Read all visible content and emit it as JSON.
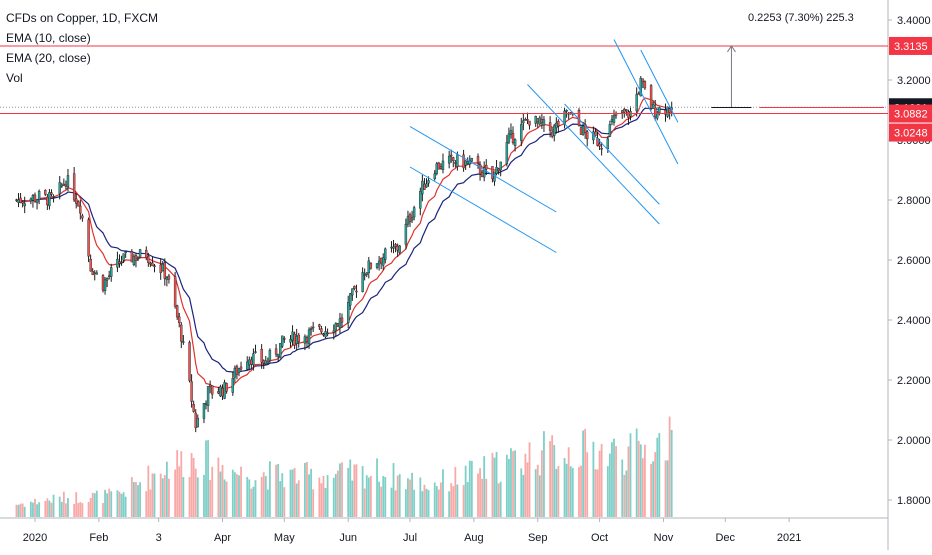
{
  "legend": {
    "title": "CFDs on Copper, 1D, FXCM",
    "ema10": "EMA (10, close)",
    "ema20": "EMA (20, close)",
    "vol": "Vol"
  },
  "measure_label": "0.2253  (7.30%)  225.3",
  "colors": {
    "up": "#26a69a",
    "down": "#ef5350",
    "up_vol": "#7ecfc7",
    "down_vol": "#f7a9a7",
    "ema10": "#e0322f",
    "ema20": "#1a237e",
    "channel": "#2196f3",
    "level": "#f23645",
    "axis_text": "#131722"
  },
  "chart_data": {
    "type": "candlestick",
    "title": "CFDs on Copper, 1D, FXCM",
    "ylim": [
      1.75,
      3.45
    ],
    "y_ticks": [
      "3.4000",
      "3.2000",
      "3.0000",
      "2.8000",
      "2.6000",
      "2.4000",
      "2.2000",
      "2.0000",
      "1.8000"
    ],
    "x_ticks": [
      "2020",
      "Feb",
      "3",
      "Apr",
      "May",
      "Jun",
      "Jul",
      "Aug",
      "Sep",
      "Oct",
      "Nov",
      "Dec",
      "2021"
    ],
    "price_labels": [
      {
        "label": "3.3135",
        "value": 3.3135,
        "style": "level"
      },
      {
        "label": "3.1091",
        "value": 3.1091,
        "style": "last"
      },
      {
        "label": "3.0882",
        "value": 3.0882,
        "style": "level"
      },
      {
        "label": "3.0248",
        "value": 3.0248,
        "style": "level"
      }
    ],
    "horizontal_levels": [
      3.3135,
      3.0882
    ],
    "last_price": 3.1091,
    "measure": {
      "from": 3.0882,
      "to": 3.3135,
      "change": 0.2253,
      "percent": "7.30%",
      "ticks": 225.3
    },
    "ohlc_anchors": [
      {
        "date": "2019-12-23",
        "close": 2.8
      },
      {
        "date": "2020-01-03",
        "close": 2.81
      },
      {
        "date": "2020-01-10",
        "close": 2.8
      },
      {
        "date": "2020-01-16",
        "close": 2.87
      },
      {
        "date": "2020-01-23",
        "close": 2.78
      },
      {
        "date": "2020-01-28",
        "close": 2.58
      },
      {
        "date": "2020-02-03",
        "close": 2.52
      },
      {
        "date": "2020-02-12",
        "close": 2.6
      },
      {
        "date": "2020-02-24",
        "close": 2.62
      },
      {
        "date": "2020-03-05",
        "close": 2.55
      },
      {
        "date": "2020-03-12",
        "close": 2.35
      },
      {
        "date": "2020-03-19",
        "close": 2.05
      },
      {
        "date": "2020-03-25",
        "close": 2.16
      },
      {
        "date": "2020-04-02",
        "close": 2.17
      },
      {
        "date": "2020-04-13",
        "close": 2.28
      },
      {
        "date": "2020-04-22",
        "close": 2.26
      },
      {
        "date": "2020-05-01",
        "close": 2.33
      },
      {
        "date": "2020-05-11",
        "close": 2.35
      },
      {
        "date": "2020-05-21",
        "close": 2.37
      },
      {
        "date": "2020-05-29",
        "close": 2.4
      },
      {
        "date": "2020-06-08",
        "close": 2.56
      },
      {
        "date": "2020-06-15",
        "close": 2.6
      },
      {
        "date": "2020-06-25",
        "close": 2.64
      },
      {
        "date": "2020-07-06",
        "close": 2.83
      },
      {
        "date": "2020-07-13",
        "close": 2.91
      },
      {
        "date": "2020-07-22",
        "close": 2.93
      },
      {
        "date": "2020-07-31",
        "close": 2.92
      },
      {
        "date": "2020-08-10",
        "close": 2.87
      },
      {
        "date": "2020-08-18",
        "close": 3.0
      },
      {
        "date": "2020-08-28",
        "close": 3.07
      },
      {
        "date": "2020-09-08",
        "close": 3.03
      },
      {
        "date": "2020-09-16",
        "close": 3.09
      },
      {
        "date": "2020-09-24",
        "close": 3.02
      },
      {
        "date": "2020-10-02",
        "close": 2.99
      },
      {
        "date": "2020-10-09",
        "close": 3.08
      },
      {
        "date": "2020-10-16",
        "close": 3.09
      },
      {
        "date": "2020-10-21",
        "close": 3.19
      },
      {
        "date": "2020-10-27",
        "close": 3.1
      },
      {
        "date": "2020-11-05",
        "close": 3.109
      }
    ],
    "volume_profile": [
      {
        "date": "2019-12-23",
        "level": 0.1
      },
      {
        "date": "2020-01-15",
        "level": 0.15
      },
      {
        "date": "2020-02-10",
        "level": 0.17
      },
      {
        "date": "2020-03-05",
        "level": 0.4
      },
      {
        "date": "2020-03-20",
        "level": 0.48
      },
      {
        "date": "2020-04-10",
        "level": 0.34
      },
      {
        "date": "2020-05-15",
        "level": 0.32
      },
      {
        "date": "2020-06-15",
        "level": 0.35
      },
      {
        "date": "2020-07-10",
        "level": 0.25
      },
      {
        "date": "2020-08-05",
        "level": 0.36
      },
      {
        "date": "2020-09-01",
        "level": 0.5
      },
      {
        "date": "2020-09-25",
        "level": 0.52
      },
      {
        "date": "2020-10-15",
        "level": 0.5
      },
      {
        "date": "2020-11-05",
        "level": 0.6
      }
    ],
    "channels": [
      {
        "p1": {
          "date": "2020-07-01",
          "price": 3.045
        },
        "p2": {
          "date": "2020-09-10",
          "price": 2.76
        },
        "parallel_through": {
          "date": "2020-07-01",
          "price": 2.91
        }
      },
      {
        "p1": {
          "date": "2020-08-27",
          "price": 3.185
        },
        "p2": {
          "date": "2020-10-30",
          "price": 2.72
        },
        "parallel_through": {
          "date": "2020-09-14",
          "price": 3.12
        }
      },
      {
        "p1": {
          "date": "2020-10-08",
          "price": 3.335
        },
        "p2": {
          "date": "2020-11-08",
          "price": 2.92
        },
        "parallel_through": {
          "date": "2020-10-21",
          "price": 3.3
        }
      }
    ]
  }
}
